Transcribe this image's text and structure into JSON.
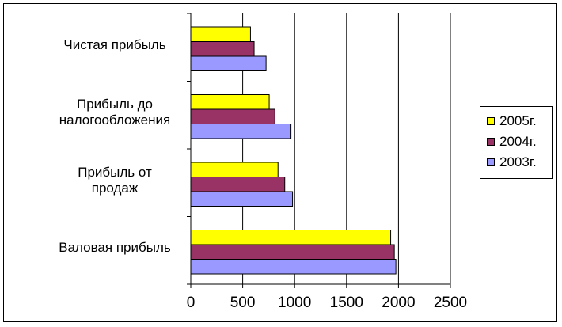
{
  "chart_data": {
    "type": "bar",
    "orientation": "horizontal",
    "categories": [
      "Чистая прибыль",
      "Прибыль до налогообложения",
      "Прибыль от продаж",
      "Валовая прибыль"
    ],
    "category_lines": [
      [
        "Чистая прибыль"
      ],
      [
        "Прибыль до",
        "налогообложения"
      ],
      [
        "Прибыль от",
        "продаж"
      ],
      [
        "Валовая прибыль"
      ]
    ],
    "series": [
      {
        "name": "2005г.",
        "color": "#ffff00",
        "values": [
          575,
          755,
          840,
          1925
        ]
      },
      {
        "name": "2004г.",
        "color": "#993366",
        "values": [
          610,
          810,
          905,
          1960
        ]
      },
      {
        "name": "2003г.",
        "color": "#9999ff",
        "values": [
          725,
          965,
          980,
          1975
        ]
      }
    ],
    "xlim": [
      0,
      2500
    ],
    "x_ticks": [
      "0",
      "500",
      "1000",
      "1500",
      "2000",
      "2500"
    ],
    "grid": "vertical major gridlines",
    "legend_position": "right"
  }
}
